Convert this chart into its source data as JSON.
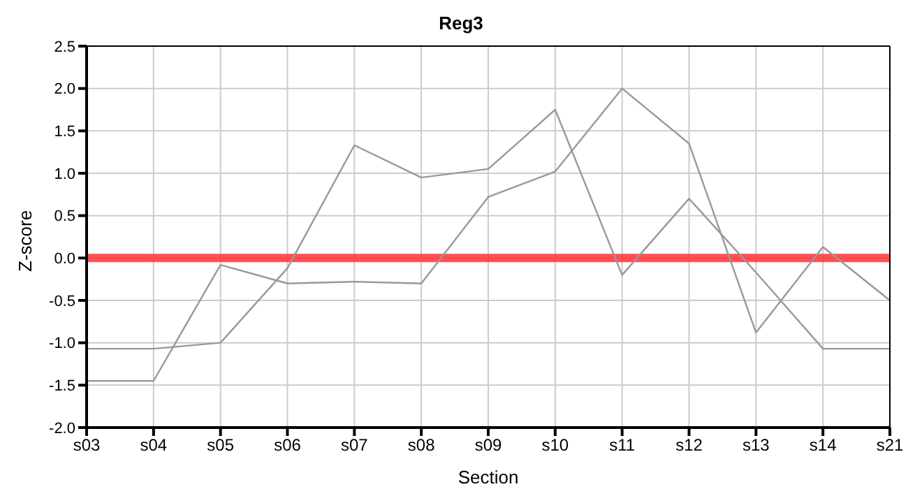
{
  "chart_data": {
    "type": "line",
    "title": "Reg3",
    "xlabel": "Section",
    "ylabel": "Z-score",
    "categories": [
      "s03",
      "s04",
      "s05",
      "s06",
      "s07",
      "s08",
      "s09",
      "s10",
      "s11",
      "s12",
      "s13",
      "s14",
      "s21"
    ],
    "series": [
      {
        "color": "#999999",
        "values": [
          -1.45,
          -1.45,
          -0.08,
          -0.3,
          -0.28,
          -0.3,
          0.72,
          1.02,
          2.0,
          1.35,
          -0.88,
          0.13,
          -0.5
        ]
      },
      {
        "color": "#999999",
        "values": [
          -1.07,
          -1.07,
          -1.0,
          -0.12,
          1.33,
          0.95,
          1.05,
          1.75,
          -0.2,
          0.7,
          -0.17,
          -1.07,
          -1.07
        ]
      }
    ],
    "ylim": [
      -2,
      2.5
    ],
    "yticks": [
      {
        "value": -2,
        "label": "-2.0"
      },
      {
        "value": -1.5,
        "label": "-1.5"
      },
      {
        "value": -1,
        "label": "-1.0"
      },
      {
        "value": -0.5,
        "label": "-0.5"
      },
      {
        "value": 0,
        "label": "0.0"
      },
      {
        "value": 0.5,
        "label": "0.5"
      },
      {
        "value": 1,
        "label": "1.0"
      },
      {
        "value": 1.5,
        "label": "1.5"
      },
      {
        "value": 2,
        "label": "2.0"
      },
      {
        "value": 2.5,
        "label": "2.5"
      }
    ],
    "ref_lines": [
      {
        "axis": "y",
        "value": 0,
        "color": "#ff3333"
      }
    ],
    "grid": true,
    "legend": false,
    "marker": "none",
    "line_style": "solid"
  }
}
